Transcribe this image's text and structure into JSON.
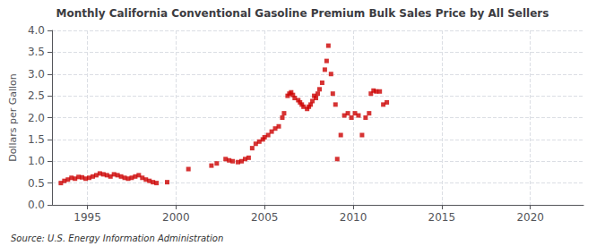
{
  "chart_data": {
    "type": "scatter",
    "title": "Monthly California Conventional Gasoline Premium Bulk Sales Price by All Sellers",
    "ylabel": "Dollars per Gallon",
    "annotations": [
      "Source: U.S. Energy Information Administration"
    ],
    "color": "#cc0000",
    "marker": "square",
    "grid": true,
    "xlim": [
      1993.0,
      2023.0
    ],
    "ylim": [
      0.0,
      4.0
    ],
    "xticks": [
      1995,
      2000,
      2005,
      2010,
      2015,
      2020
    ],
    "yticks": [
      {
        "value": 0,
        "label": "0.0"
      },
      0.5,
      {
        "value": 1,
        "label": "1.0"
      },
      1.5,
      {
        "value": 2,
        "label": "2.0"
      },
      2.5,
      {
        "value": 3,
        "label": "3.0"
      },
      3.5,
      {
        "value": 4,
        "label": "4.0"
      }
    ],
    "x": [
      1993.5,
      1993.7,
      1993.9,
      1994.1,
      1994.3,
      1994.5,
      1994.7,
      1994.9,
      1995.1,
      1995.3,
      1995.5,
      1995.7,
      1995.9,
      1996.1,
      1996.3,
      1996.5,
      1996.7,
      1996.9,
      1997.1,
      1997.3,
      1997.5,
      1997.7,
      1997.9,
      1998.1,
      1998.3,
      1998.5,
      1998.7,
      1998.9,
      1999.5,
      2000.7,
      2002.0,
      2002.3,
      2002.8,
      2003.0,
      2003.2,
      2003.5,
      2003.7,
      2003.9,
      2004.1,
      2004.3,
      2004.5,
      2004.7,
      2004.9,
      2005.0,
      2005.2,
      2005.4,
      2005.6,
      2005.8,
      2006.0,
      2006.1,
      2006.3,
      2006.4,
      2006.5,
      2006.6,
      2006.7,
      2006.9,
      2007.0,
      2007.1,
      2007.2,
      2007.4,
      2007.5,
      2007.6,
      2007.7,
      2007.8,
      2007.9,
      2008.0,
      2008.1,
      2008.25,
      2008.4,
      2008.5,
      2008.6,
      2008.75,
      2008.85,
      2009.0,
      2009.1,
      2009.3,
      2009.5,
      2009.7,
      2009.9,
      2010.1,
      2010.3,
      2010.5,
      2010.7,
      2010.9,
      2011.0,
      2011.15,
      2011.3,
      2011.5,
      2011.7,
      2011.9
    ],
    "values": [
      0.5,
      0.55,
      0.58,
      0.62,
      0.6,
      0.64,
      0.63,
      0.6,
      0.62,
      0.65,
      0.68,
      0.72,
      0.7,
      0.68,
      0.65,
      0.7,
      0.68,
      0.65,
      0.62,
      0.6,
      0.62,
      0.65,
      0.68,
      0.62,
      0.58,
      0.55,
      0.52,
      0.5,
      0.52,
      0.82,
      0.9,
      0.95,
      1.05,
      1.02,
      1.0,
      0.98,
      1.0,
      1.05,
      1.08,
      1.3,
      1.4,
      1.45,
      1.5,
      1.55,
      1.6,
      1.68,
      1.75,
      1.8,
      2.0,
      2.1,
      2.5,
      2.55,
      2.58,
      2.52,
      2.45,
      2.4,
      2.35,
      2.3,
      2.25,
      2.2,
      2.25,
      2.3,
      2.38,
      2.5,
      2.45,
      2.55,
      2.65,
      2.8,
      3.1,
      3.3,
      3.65,
      3.0,
      2.55,
      2.3,
      1.05,
      1.6,
      2.05,
      2.1,
      2.0,
      2.1,
      2.05,
      1.6,
      2.0,
      2.1,
      2.55,
      2.62,
      2.6,
      2.6,
      2.3,
      2.35
    ]
  }
}
